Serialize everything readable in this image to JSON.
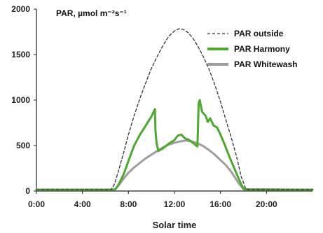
{
  "chart_data": {
    "type": "line",
    "title": "PAR, µmol m⁻²s⁻¹",
    "xlabel": "Solar time",
    "ylabel": "",
    "xlim": [
      0,
      24
    ],
    "ylim": [
      0,
      2000
    ],
    "x_ticks": [
      0,
      4,
      8,
      12,
      16,
      20
    ],
    "x_tick_labels": [
      "0:00",
      "4:00",
      "8:00",
      "12:00",
      "16:00",
      "20:00"
    ],
    "y_ticks": [
      0,
      500,
      1000,
      1500,
      2000
    ],
    "y_tick_labels": [
      "0",
      "500",
      "1000",
      "1500",
      "2000"
    ],
    "grid": false,
    "legend_position": "top-right",
    "series": [
      {
        "name": "PAR outside",
        "color": "#333333",
        "style": "dashed",
        "points": [
          [
            0,
            15
          ],
          [
            6.5,
            15
          ],
          [
            6.8,
            80
          ],
          [
            7.2,
            250
          ],
          [
            7.6,
            430
          ],
          [
            8.0,
            620
          ],
          [
            8.5,
            830
          ],
          [
            9.0,
            1020
          ],
          [
            9.5,
            1190
          ],
          [
            10.0,
            1350
          ],
          [
            10.5,
            1480
          ],
          [
            11.0,
            1600
          ],
          [
            11.5,
            1700
          ],
          [
            12.0,
            1760
          ],
          [
            12.4,
            1785
          ],
          [
            12.8,
            1775
          ],
          [
            13.2,
            1740
          ],
          [
            13.6,
            1680
          ],
          [
            14.0,
            1600
          ],
          [
            14.5,
            1480
          ],
          [
            15.0,
            1340
          ],
          [
            15.5,
            1170
          ],
          [
            16.0,
            980
          ],
          [
            16.5,
            770
          ],
          [
            17.0,
            560
          ],
          [
            17.4,
            380
          ],
          [
            17.8,
            160
          ],
          [
            18.2,
            25
          ],
          [
            18.5,
            15
          ],
          [
            24,
            15
          ]
        ]
      },
      {
        "name": "PAR Harmony",
        "color": "#4da82f",
        "style": "solid",
        "points": [
          [
            0,
            15
          ],
          [
            6.8,
            15
          ],
          [
            7.0,
            40
          ],
          [
            7.3,
            110
          ],
          [
            7.6,
            190
          ],
          [
            8.0,
            330
          ],
          [
            8.5,
            500
          ],
          [
            9.0,
            620
          ],
          [
            9.5,
            720
          ],
          [
            10.0,
            820
          ],
          [
            10.3,
            900
          ],
          [
            10.35,
            660
          ],
          [
            10.45,
            520
          ],
          [
            10.6,
            440
          ],
          [
            11.0,
            470
          ],
          [
            11.5,
            520
          ],
          [
            12.0,
            560
          ],
          [
            12.3,
            610
          ],
          [
            12.6,
            620
          ],
          [
            12.9,
            580
          ],
          [
            13.3,
            560
          ],
          [
            13.7,
            520
          ],
          [
            14.0,
            490
          ],
          [
            14.1,
            960
          ],
          [
            14.2,
            1000
          ],
          [
            14.4,
            870
          ],
          [
            14.7,
            830
          ],
          [
            14.9,
            760
          ],
          [
            15.1,
            800
          ],
          [
            15.4,
            720
          ],
          [
            15.7,
            700
          ],
          [
            16.0,
            620
          ],
          [
            16.4,
            500
          ],
          [
            16.8,
            370
          ],
          [
            17.2,
            250
          ],
          [
            17.6,
            130
          ],
          [
            17.9,
            50
          ],
          [
            18.1,
            15
          ],
          [
            24,
            15
          ]
        ]
      },
      {
        "name": "PAR Whitewash",
        "color": "#9e9e9e",
        "style": "solid",
        "points": [
          [
            0,
            15
          ],
          [
            6.8,
            15
          ],
          [
            7.2,
            70
          ],
          [
            7.6,
            140
          ],
          [
            8.0,
            200
          ],
          [
            8.5,
            260
          ],
          [
            9.0,
            310
          ],
          [
            9.5,
            360
          ],
          [
            10.0,
            400
          ],
          [
            10.5,
            440
          ],
          [
            11.0,
            480
          ],
          [
            11.5,
            510
          ],
          [
            12.0,
            530
          ],
          [
            12.5,
            545
          ],
          [
            13.0,
            555
          ],
          [
            13.5,
            545
          ],
          [
            14.0,
            525
          ],
          [
            14.5,
            495
          ],
          [
            15.0,
            450
          ],
          [
            15.5,
            400
          ],
          [
            16.0,
            340
          ],
          [
            16.5,
            280
          ],
          [
            17.0,
            200
          ],
          [
            17.5,
            100
          ],
          [
            18.0,
            20
          ],
          [
            24,
            15
          ]
        ]
      }
    ]
  }
}
